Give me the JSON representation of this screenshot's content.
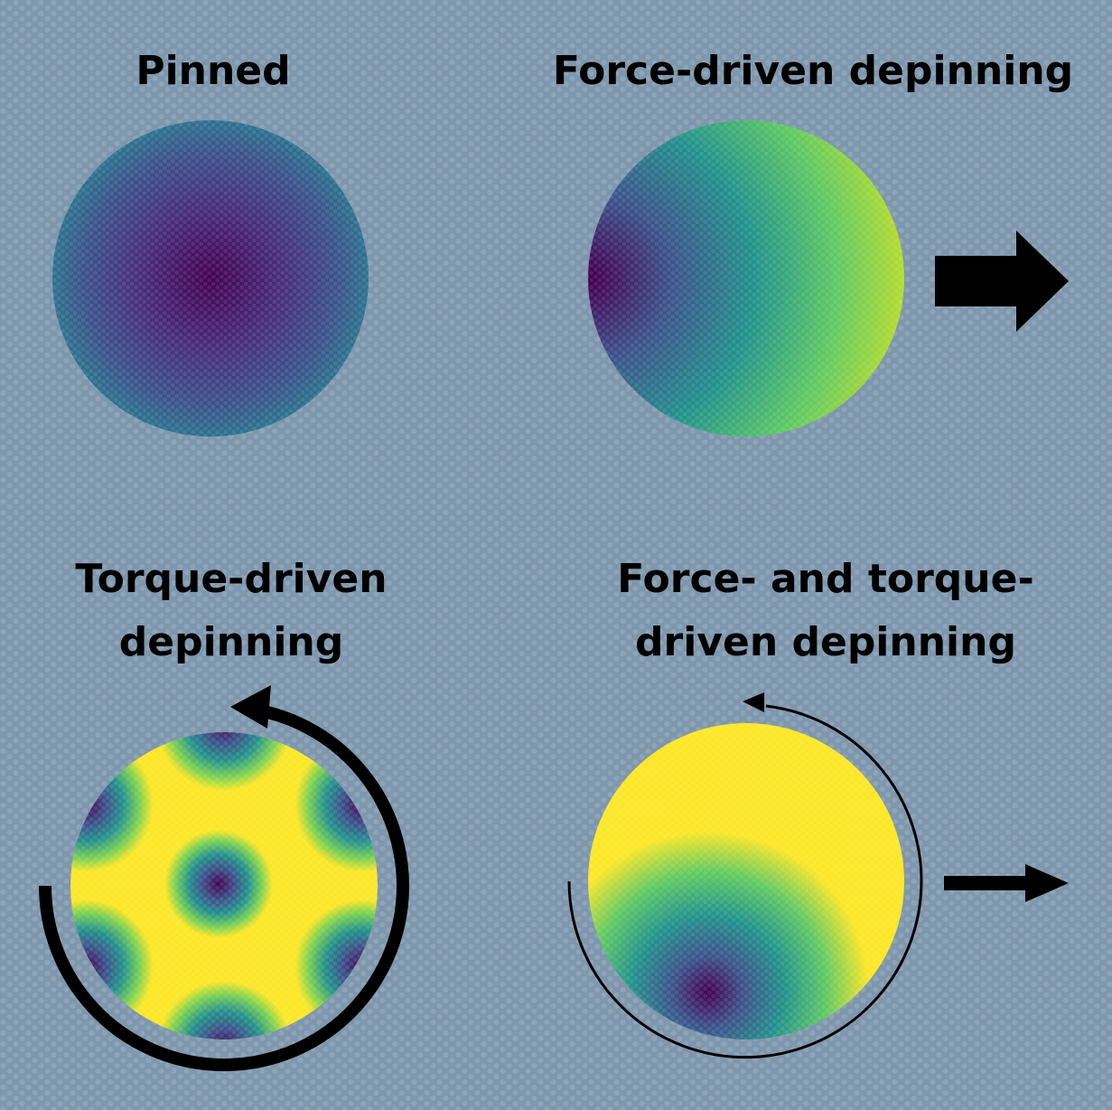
{
  "panels": [
    {
      "title": [
        "Pinned"
      ]
    },
    {
      "title": [
        "Force-driven depinning"
      ]
    },
    {
      "title": [
        "Torque-driven",
        "depinning"
      ]
    },
    {
      "title": [
        "Force- and torque-",
        "driven depinning"
      ]
    }
  ]
}
